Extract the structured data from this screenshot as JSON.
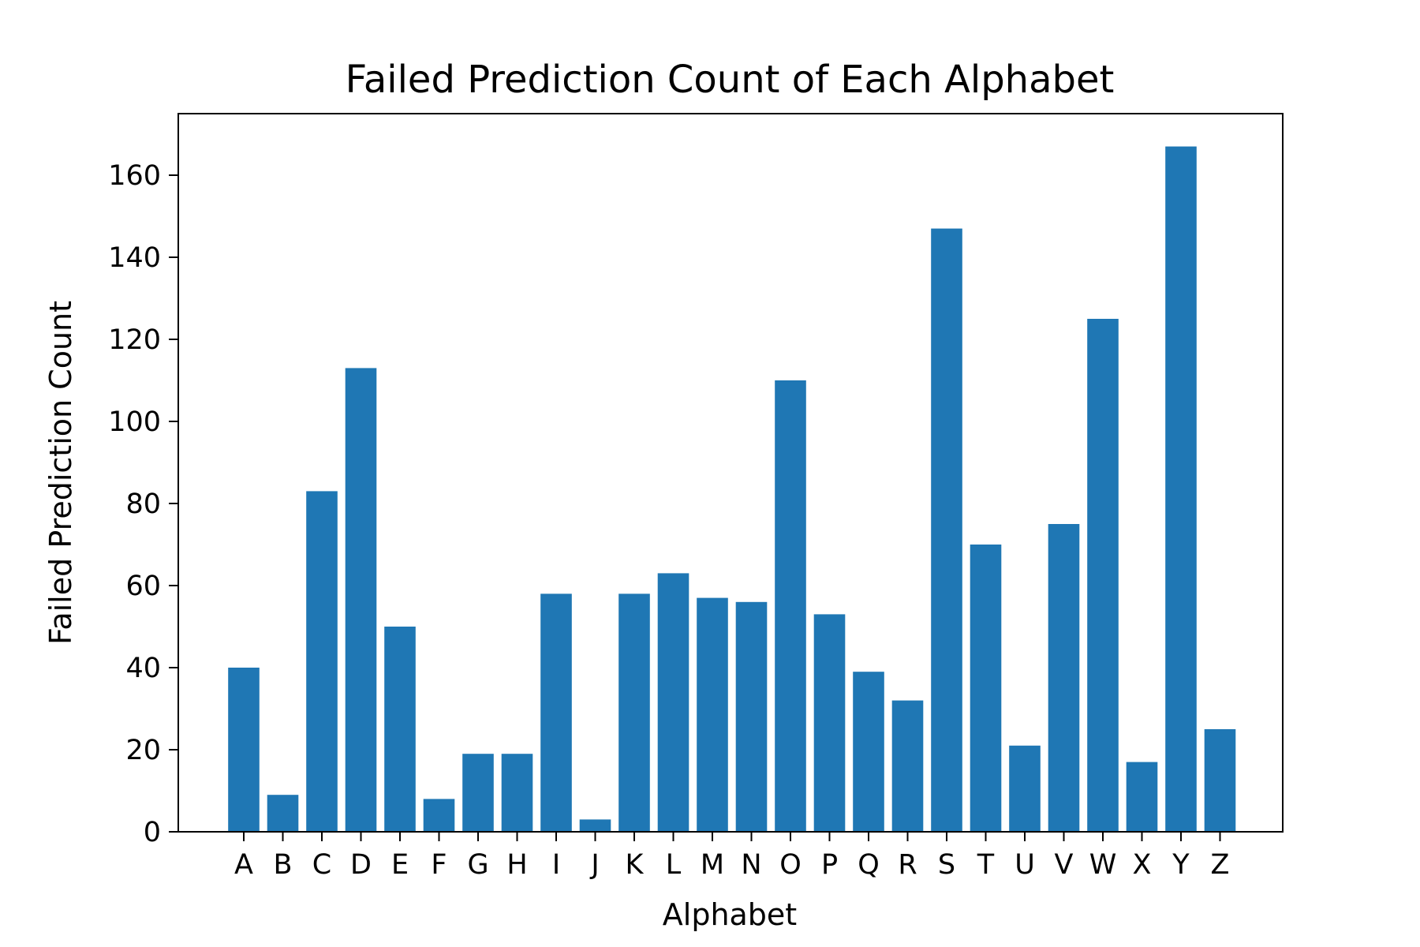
{
  "chart_data": {
    "type": "bar",
    "title": "Failed Prediction Count of Each Alphabet",
    "xlabel": "Alphabet",
    "ylabel": "Failed Prediction Count",
    "categories": [
      "A",
      "B",
      "C",
      "D",
      "E",
      "F",
      "G",
      "H",
      "I",
      "J",
      "K",
      "L",
      "M",
      "N",
      "O",
      "P",
      "Q",
      "R",
      "S",
      "T",
      "U",
      "V",
      "W",
      "X",
      "Y",
      "Z"
    ],
    "values": [
      40,
      9,
      83,
      113,
      50,
      8,
      19,
      19,
      58,
      3,
      58,
      63,
      57,
      56,
      110,
      53,
      39,
      32,
      147,
      70,
      21,
      75,
      125,
      17,
      167,
      25
    ],
    "ylim": [
      0,
      175
    ],
    "yticks": [
      0,
      20,
      40,
      60,
      80,
      100,
      120,
      140,
      160
    ],
    "bar_color": "#1f77b4",
    "grid": false,
    "legend": "none"
  }
}
